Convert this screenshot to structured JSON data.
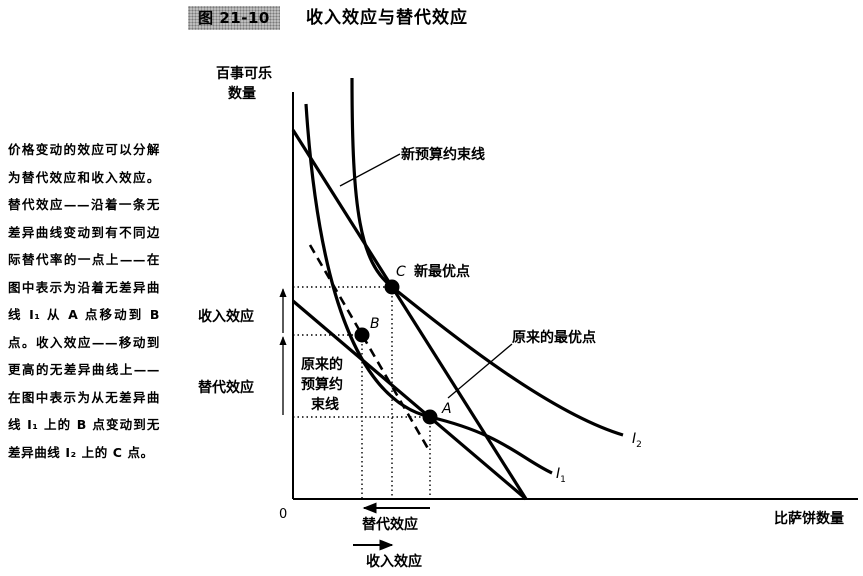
{
  "figure": {
    "number": "图 21-10",
    "title": "收入效应与替代效应"
  },
  "caption": "价格变动的效应可以分解为替代效应和收入效应。替代效应——沿着一条无差异曲线变动到有不同边际替代率的一点上——在图中表示为沿着无差异曲线 I₁ 从 A 点移动到 B 点。收入效应——移动到更高的无差异曲线上——在图中表示为从无差异曲线 I₁ 上的 B 点变动到无差异曲线 I₂ 上的 C 点。",
  "axes": {
    "y_label_line1": "百事可乐",
    "y_label_line2": "数量",
    "x_label": "比萨饼数量",
    "origin": "0"
  },
  "labels": {
    "new_budget_line": "新预算约束线",
    "new_optimum": "新最优点",
    "original_optimum": "原来的最优点",
    "original_budget_line_1": "原来的",
    "original_budget_line_2": "预算约",
    "original_budget_line_3": "束线",
    "income_effect_y": "收入效应",
    "substitution_effect_y": "替代效应",
    "substitution_effect_x": "替代效应",
    "income_effect_x": "收入效应"
  },
  "points": {
    "a": "A",
    "b": "B",
    "c": "C"
  },
  "curves": {
    "i1": "I",
    "i1_sub": "1",
    "i2": "I",
    "i2_sub": "2"
  }
}
